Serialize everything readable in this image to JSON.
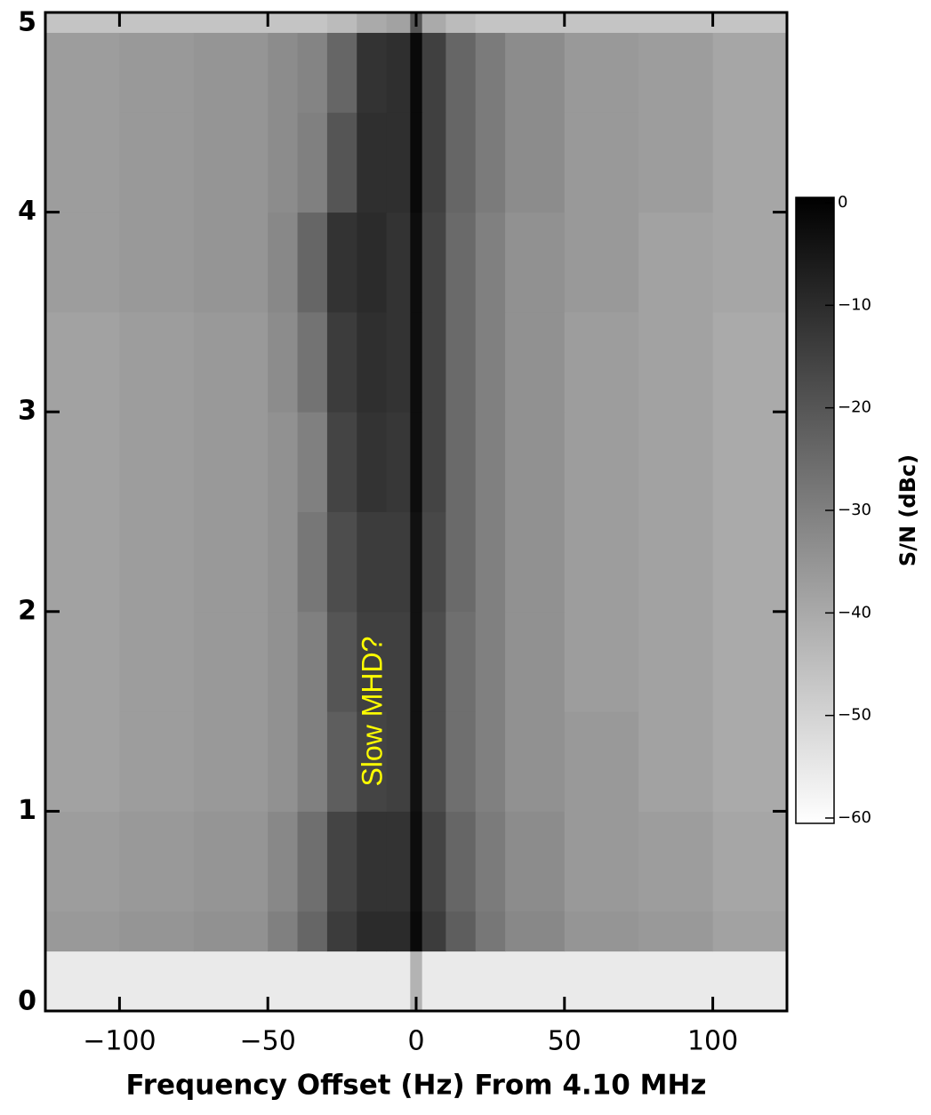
{
  "chart_data": {
    "type": "heatmap",
    "xlabel": "Frequency Offset (Hz) From 4.10 MHz",
    "x_edges": [
      -125,
      -100,
      -75,
      -50,
      -40,
      -30,
      -20,
      -10,
      -2,
      2,
      10,
      20,
      30,
      50,
      75,
      100,
      125
    ],
    "y_edges": [
      0,
      0.3,
      0.5,
      1,
      1.5,
      2,
      2.5,
      3,
      3.5,
      4,
      4.5,
      4.9,
      5
    ],
    "z": [
      [
        -55,
        -55,
        -55,
        -55,
        -55,
        -55,
        -55,
        -55,
        -42,
        -55,
        -55,
        -55,
        -55,
        -55,
        -55,
        -55
      ],
      [
        -36,
        -35,
        -34,
        -30,
        -24,
        -14,
        -10,
        -10,
        -2,
        -14,
        -22,
        -28,
        -32,
        -35,
        -36,
        -38
      ],
      [
        -37,
        -36,
        -35,
        -32,
        -26,
        -16,
        -12,
        -12,
        -3,
        -16,
        -24,
        -29,
        -33,
        -36,
        -37,
        -39
      ],
      [
        -38,
        -37,
        -36,
        -34,
        -30,
        -22,
        -16,
        -15,
        -4,
        -18,
        -26,
        -30,
        -34,
        -36,
        -38,
        -40
      ],
      [
        -38,
        -37,
        -36,
        -34,
        -30,
        -20,
        -15,
        -15,
        -4,
        -18,
        -26,
        -30,
        -34,
        -37,
        -38,
        -40
      ],
      [
        -38,
        -37,
        -36,
        -34,
        -28,
        -18,
        -14,
        -14,
        -4,
        -17,
        -25,
        -30,
        -34,
        -37,
        -38,
        -40
      ],
      [
        -38,
        -37,
        -36,
        -34,
        -30,
        -16,
        -12,
        -13,
        -3,
        -16,
        -25,
        -30,
        -34,
        -37,
        -38,
        -40
      ],
      [
        -38,
        -37,
        -36,
        -33,
        -27,
        -14,
        -11,
        -12,
        -3,
        -16,
        -25,
        -30,
        -34,
        -37,
        -38,
        -40
      ],
      [
        -37,
        -36,
        -35,
        -32,
        -24,
        -12,
        -10,
        -12,
        -3,
        -16,
        -25,
        -30,
        -34,
        -36,
        -38,
        -39
      ],
      [
        -37,
        -36,
        -35,
        -33,
        -30,
        -20,
        -11,
        -11,
        -2,
        -15,
        -24,
        -29,
        -33,
        -36,
        -37,
        -39
      ],
      [
        -37,
        -36,
        -35,
        -33,
        -31,
        -24,
        -12,
        -11,
        -2,
        -15,
        -24,
        -29,
        -33,
        -36,
        -37,
        -39
      ],
      [
        -46,
        -46,
        -46,
        -46,
        -46,
        -44,
        -40,
        -38,
        -20,
        -40,
        -44,
        -46,
        -46,
        -46,
        -46,
        -46
      ]
    ],
    "xlim": [
      -125,
      125
    ],
    "xticks": [
      {
        "value": -100,
        "label": "−100"
      },
      {
        "value": -50,
        "label": "−50"
      },
      0,
      50,
      100
    ],
    "ylim": [
      0,
      5
    ],
    "yticks": [
      0,
      1,
      2,
      3,
      4,
      5
    ],
    "clim": [
      -60,
      0
    ],
    "cticks": [
      0,
      {
        "value": -10,
        "label": "−10"
      },
      {
        "value": -20,
        "label": "−20"
      },
      {
        "value": -30,
        "label": "−30"
      },
      {
        "value": -40,
        "label": "−40"
      },
      {
        "value": -50,
        "label": "−50"
      },
      {
        "value": -60,
        "label": "−60"
      }
    ],
    "colorbar_label": "S/N (dBc)",
    "colormap": [
      "#ffffff",
      "#000000"
    ],
    "annotation": {
      "text": "Slow MHD?",
      "x": -14,
      "y": 1.5,
      "color": "#ffff00"
    }
  }
}
